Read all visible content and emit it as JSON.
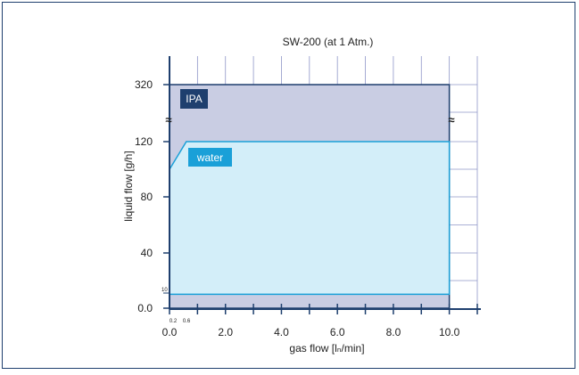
{
  "colors": {
    "border": "#1e3f6e",
    "axis": "#1e3f6e",
    "grid": "#8f96c8",
    "ipa_fill": "#c9cde3",
    "ipa_line": "#1e3f6e",
    "ipa_label_bg": "#1e3f6e",
    "water_fill": "#d3eef9",
    "water_line": "#1aa0d8",
    "water_label_bg": "#1aa0d8",
    "label_text": "#ffffff",
    "text": "#222222"
  },
  "chart_data": {
    "type": "area",
    "title": "SW-200 (at 1 Atm.)",
    "xlabel": "gas flow [lₙ/min]",
    "ylabel": "liquid flow [g/h]",
    "xlim": [
      0,
      11
    ],
    "x_tick_labels": [
      "0.0",
      "2.0",
      "4.0",
      "6.0",
      "8.0",
      "10.0"
    ],
    "x_minor_labels": [
      "0.2",
      "0.6"
    ],
    "y_tick_labels": [
      "0.0",
      "40",
      "80",
      "120",
      "320"
    ],
    "y_minor_labels": [
      "10"
    ],
    "axis_break_symbol": "≈",
    "grid": true,
    "series": [
      {
        "name": "IPA",
        "x": [
          0.0,
          10.0
        ],
        "y_low": [
          0,
          0
        ],
        "y_high": [
          320,
          320
        ]
      },
      {
        "name": "water",
        "x": [
          0.0,
          0.0,
          0.6,
          10.0,
          10.0
        ],
        "y": [
          10,
          100,
          120,
          120,
          10
        ]
      }
    ]
  }
}
